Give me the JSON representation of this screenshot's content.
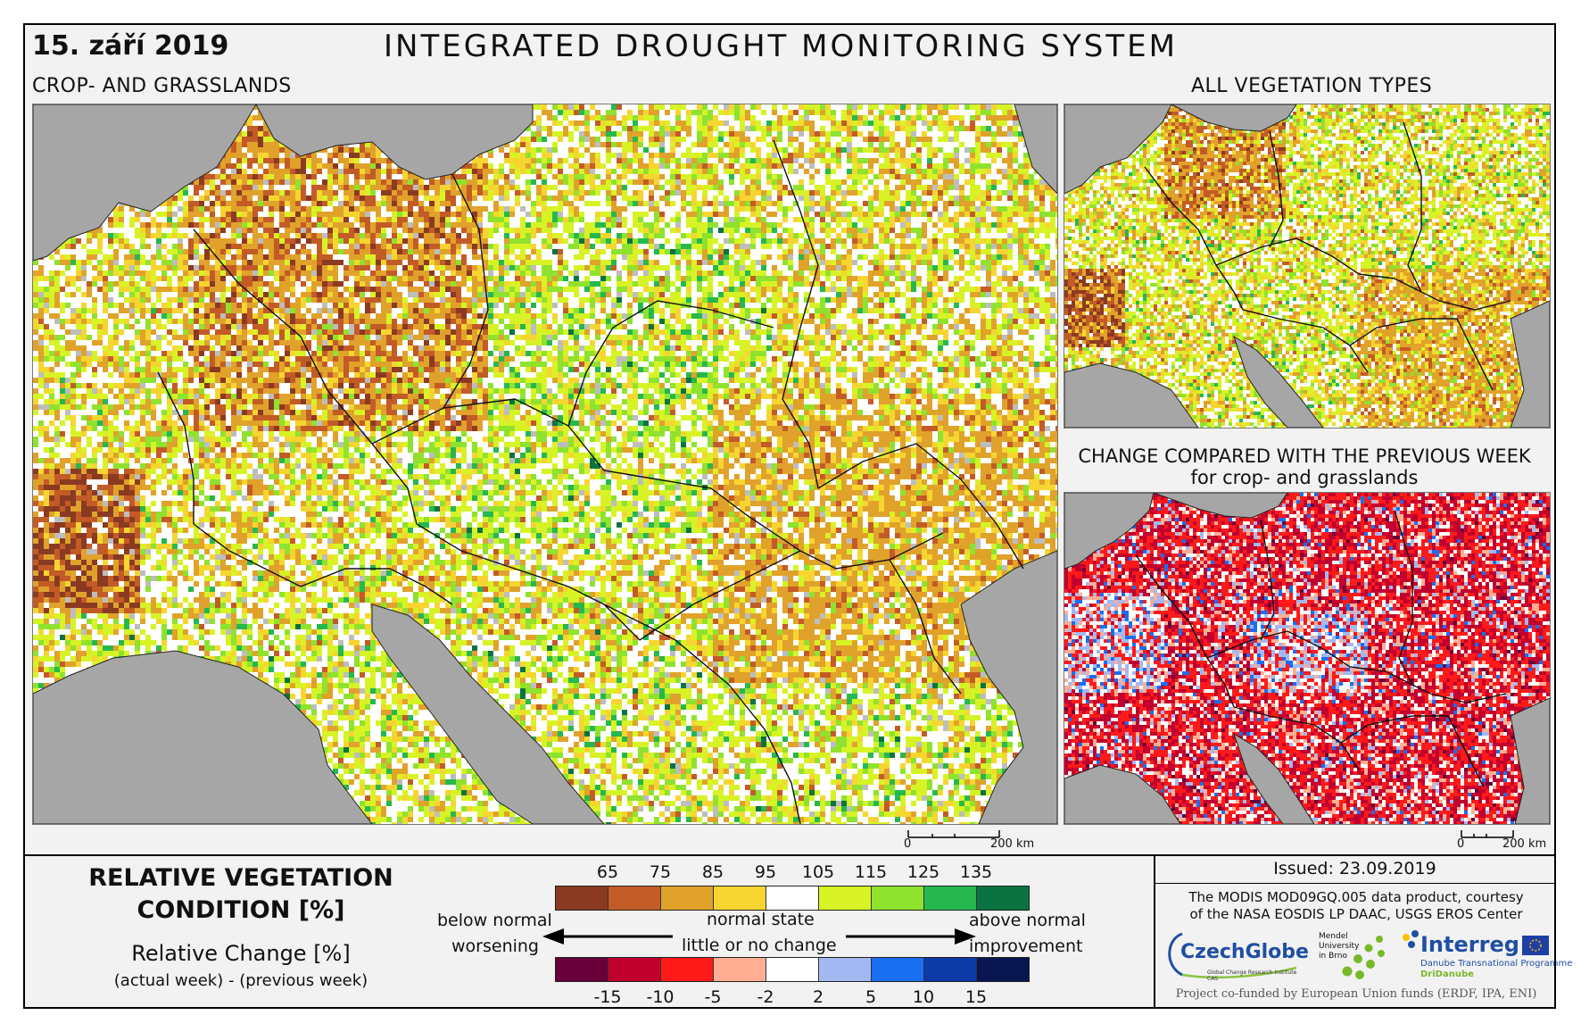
{
  "header": {
    "date": "15. září 2019",
    "title": "INTEGRATED DROUGHT MONITORING SYSTEM"
  },
  "main_map": {
    "label": "CROP- AND GRASSLANDS",
    "scale_zero": "0",
    "scale_end": "200 km"
  },
  "veg_map": {
    "label": "ALL VEGETATION TYPES"
  },
  "change_map": {
    "label_line1": "CHANGE COMPARED WITH THE PREVIOUS WEEK",
    "label_line2": "for crop- and grasslands",
    "scale_zero": "0",
    "scale_end": "200 km"
  },
  "legend": {
    "title_line1": "RELATIVE VEGETATION",
    "title_line2": "CONDITION [%]",
    "rel_change": "Relative Change [%]",
    "rel_change_sub": "(actual week) - (previous week)",
    "condition_ticks": [
      "65",
      "75",
      "85",
      "95",
      "105",
      "115",
      "125",
      "135"
    ],
    "condition_colors": [
      "#8b3a22",
      "#c35b26",
      "#e0a22a",
      "#f7d531",
      "#ffffff",
      "#d7f326",
      "#8fe22e",
      "#26b84e",
      "#0b7341"
    ],
    "change_ticks": [
      "-15",
      "-10",
      "-5",
      "-2",
      "2",
      "5",
      "10",
      "15"
    ],
    "change_colors": [
      "#6a003a",
      "#c2002f",
      "#ff1a1a",
      "#ffae93",
      "#ffffff",
      "#a3b8f2",
      "#1a6ef2",
      "#0c3aa6",
      "#0a1652"
    ],
    "left_label_1": "below normal",
    "left_label_2": "worsening",
    "center_label_1": "normal state",
    "center_label_2": "little or no change",
    "right_label_1": "above normal",
    "right_label_2": "improvement"
  },
  "info": {
    "issued": "Issued: 23.09.2019",
    "courtesy_1": "The MODIS MOD09GQ.005 data product, courtesy",
    "courtesy_2": "of the NASA EOSDIS LP DAAC, USGS EROS Center",
    "czechglobe": "CzechGlobe",
    "czechglobe_sub": "Global Change Research Institute CAS",
    "mendel_1": "Mendel",
    "mendel_2": "University",
    "mendel_3": "in Brno",
    "interreg": "Interreg",
    "interreg_sub": "Danube Transnational Programme",
    "dridanube": "DriDanube",
    "funded": "Project co-funded by European Union funds (ERDF, IPA, ENI)"
  },
  "colors": {
    "sea": "#a6a6a6",
    "frame": "#000000"
  }
}
